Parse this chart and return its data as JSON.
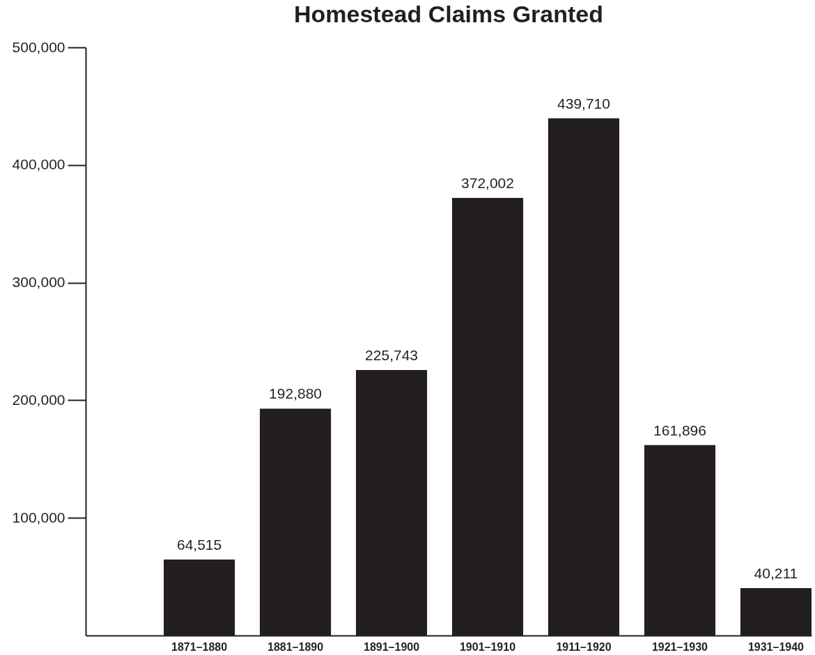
{
  "chart_data": {
    "type": "bar",
    "title": "Homestead Claims Granted",
    "categories": [
      "1871–1880",
      "1881–1890",
      "1891–1900",
      "1901–1910",
      "1911–1920",
      "1921–1930",
      "1931–1940"
    ],
    "values": [
      64515,
      192880,
      225743,
      372002,
      439710,
      161896,
      40211
    ],
    "value_labels": [
      "64,515",
      "192,880",
      "225,743",
      "372,002",
      "439,710",
      "161,896",
      "40,211"
    ],
    "color": "#231f20",
    "grid": false,
    "ylim": [
      0,
      500000
    ],
    "yticks": [
      {
        "value": 100000,
        "label": "100,000"
      },
      {
        "value": 200000,
        "label": "200,000"
      },
      {
        "value": 300000,
        "label": "300,000"
      },
      {
        "value": 400000,
        "label": "400,000"
      },
      {
        "value": 500000,
        "label": "500,000"
      }
    ]
  }
}
